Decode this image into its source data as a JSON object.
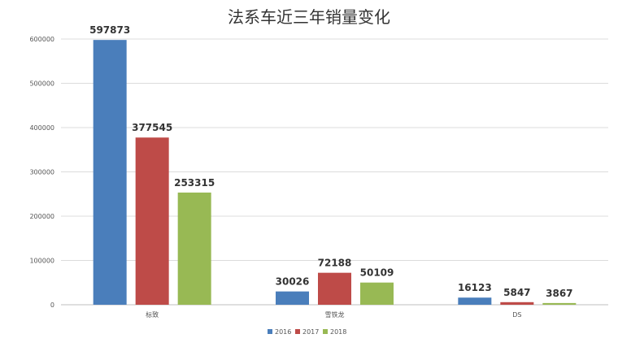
{
  "chart_data": {
    "type": "bar",
    "title": "法系车近三年销量变化",
    "categories": [
      "标致",
      "雪铁龙",
      "DS"
    ],
    "series": [
      {
        "name": "2016",
        "values": [
          597873,
          30026,
          16123
        ],
        "color": "#4a7ebb"
      },
      {
        "name": "2017",
        "values": [
          377545,
          72188,
          5847
        ],
        "color": "#be4b48"
      },
      {
        "name": "2018",
        "values": [
          253315,
          50109,
          3867
        ],
        "color": "#98b954"
      }
    ],
    "ylim": [
      0,
      600000
    ],
    "yticks": [
      "0",
      "100000",
      "200000",
      "300000",
      "400000",
      "500000",
      "600000"
    ],
    "grid": true,
    "legend": "bottom"
  }
}
